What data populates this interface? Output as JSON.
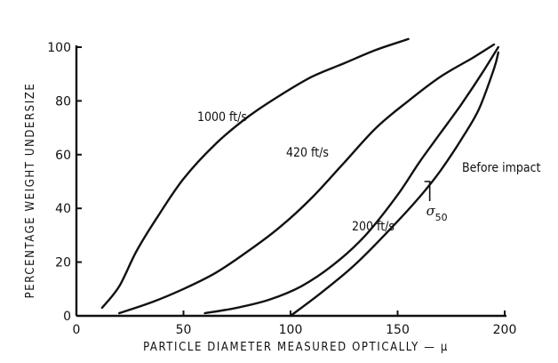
{
  "chart_data": {
    "type": "line",
    "title": "",
    "xlabel": "PARTICLE  DIAMETER  MEASURED  OPTICALLY — μ",
    "ylabel": "PERCENTAGE  WEIGHT  UNDERSIZE",
    "xlim": [
      0,
      200
    ],
    "ylim": [
      0,
      100
    ],
    "xticks": [
      0,
      50,
      100,
      150,
      200
    ],
    "yticks": [
      0,
      20,
      40,
      60,
      80,
      100
    ],
    "grid": false,
    "series": [
      {
        "name": "1000 ft/s",
        "x": [
          12,
          20,
          28,
          38,
          50,
          65,
          80,
          95,
          110,
          125,
          140,
          155
        ],
        "y": [
          3,
          11,
          24,
          37,
          51,
          64,
          74,
          82,
          89,
          94,
          99,
          103
        ]
      },
      {
        "name": "420 ft/s",
        "x": [
          20,
          35,
          50,
          65,
          80,
          95,
          110,
          125,
          140,
          155,
          170,
          185,
          195
        ],
        "y": [
          1,
          5,
          10,
          16,
          24,
          33,
          44,
          57,
          70,
          80,
          89,
          96,
          101
        ]
      },
      {
        "name": "200 ft/s",
        "x": [
          60,
          75,
          90,
          105,
          120,
          135,
          150,
          160,
          170,
          180,
          190,
          197
        ],
        "y": [
          1,
          3,
          6,
          11,
          19,
          30,
          45,
          57,
          68,
          79,
          91,
          100
        ]
      },
      {
        "name": "Before impact",
        "x": [
          100,
          115,
          130,
          145,
          160,
          170,
          180,
          188,
          195,
          197
        ],
        "y": [
          0,
          9,
          19,
          31,
          44,
          54,
          66,
          77,
          92,
          98
        ]
      }
    ],
    "annotations": [
      {
        "text": "σ",
        "subscript": "50",
        "x": 165,
        "y": 50
      }
    ]
  }
}
